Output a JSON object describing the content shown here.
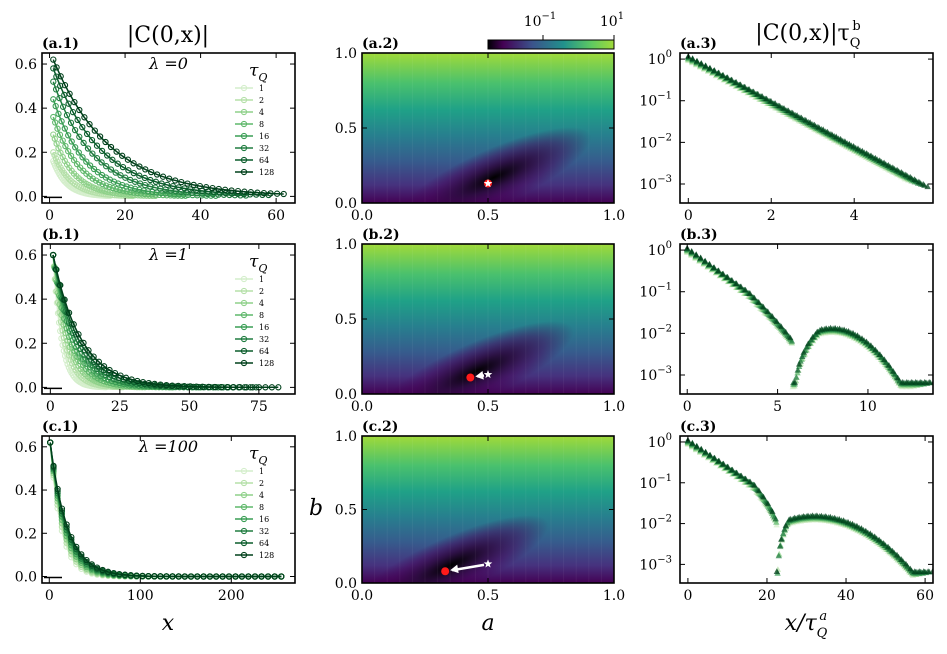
{
  "titles": {
    "left": "|C(0,x)|",
    "right_main": "|C(0,x)|τ",
    "right_sub": "Q",
    "right_sup": "b"
  },
  "axis_labels": {
    "x_left": "x",
    "x_mid": "a",
    "y_mid": "b",
    "x_right_main": "x/τ",
    "x_right_sub": "Q",
    "x_right_sup": "a"
  },
  "colorbar": {
    "tick_labels": [
      "10",
      "10"
    ],
    "tick_exponents": [
      "−1",
      "1"
    ]
  },
  "legend": {
    "title": "τ",
    "title_sub": "Q",
    "entries": [
      "1",
      "2",
      "4",
      "8",
      "16",
      "32",
      "64",
      "128"
    ]
  },
  "colors": {
    "series": [
      "#d4eecb",
      "#b5e0a9",
      "#8fd18a",
      "#5fb86b",
      "#3a9e55",
      "#207d40",
      "#0b5d2c",
      "#00401b"
    ],
    "marker": "#ff1a1a"
  },
  "chart_data": [
    {
      "panel": "(a.1)",
      "type": "line",
      "lambda_label": "λ =0",
      "xlim": [
        -2,
        65
      ],
      "ylim": [
        -0.03,
        0.65
      ],
      "xticks": [
        0,
        20,
        40,
        60
      ],
      "yticks": [
        0.0,
        0.2,
        0.4,
        0.6
      ],
      "xtick_labels": [
        "0",
        "20",
        "40",
        "60"
      ],
      "ytick_labels": [
        "0.0",
        "0.2",
        "0.4",
        "0.6"
      ],
      "series_params": [
        {
          "name": "1",
          "amp": 0.16,
          "xi": 3.5,
          "xmax": 16
        },
        {
          "name": "2",
          "amp": 0.2,
          "xi": 4.5,
          "xmax": 22
        },
        {
          "name": "4",
          "amp": 0.28,
          "xi": 5.5,
          "xmax": 28
        },
        {
          "name": "8",
          "amp": 0.36,
          "xi": 7,
          "xmax": 36
        },
        {
          "name": "16",
          "amp": 0.44,
          "xi": 8.5,
          "xmax": 44
        },
        {
          "name": "32",
          "amp": 0.52,
          "xi": 10.5,
          "xmax": 52
        },
        {
          "name": "64",
          "amp": 0.58,
          "xi": 12.5,
          "xmax": 58
        },
        {
          "name": "128",
          "amp": 0.62,
          "xi": 15,
          "xmax": 62
        }
      ]
    },
    {
      "panel": "(a.2)",
      "type": "heatmap",
      "xlim": [
        0,
        1
      ],
      "ylim": [
        0,
        1
      ],
      "xticks": [
        0,
        0.5,
        1
      ],
      "yticks": [
        0,
        0.5,
        1
      ],
      "xtick_labels": [
        "0.0",
        "0.5",
        "1.0"
      ],
      "ytick_labels": [
        "0.0",
        "0.5",
        "1.0"
      ],
      "minimum": [
        0.5,
        0.13
      ],
      "star": [
        0.5,
        0.13
      ]
    },
    {
      "panel": "(a.3)",
      "type": "scatter",
      "yscale": "log",
      "xlim": [
        -0.2,
        5.9
      ],
      "ylim": [
        0.00035,
        1.4
      ],
      "xticks": [
        0,
        2,
        4
      ],
      "xtick_labels": [
        "0",
        "2",
        "4"
      ],
      "ytick_exponents": [
        0,
        -1,
        -2,
        -3
      ],
      "curve": "exp",
      "rate": 1.25,
      "xmax": 5.5
    },
    {
      "panel": "(b.1)",
      "type": "line",
      "lambda_label": "λ =1",
      "xlim": [
        -3,
        88
      ],
      "ylim": [
        -0.03,
        0.65
      ],
      "xticks": [
        0,
        25,
        50,
        75
      ],
      "yticks": [
        0.0,
        0.2,
        0.4,
        0.6
      ],
      "xtick_labels": [
        "0",
        "25",
        "50",
        "75"
      ],
      "ytick_labels": [
        "0.0",
        "0.2",
        "0.4",
        "0.6"
      ],
      "series_params": [
        {
          "name": "1",
          "amp": 0.6,
          "xi": 3,
          "xmax": 20
        },
        {
          "name": "2",
          "amp": 0.6,
          "xi": 4,
          "xmax": 26
        },
        {
          "name": "4",
          "amp": 0.6,
          "xi": 5,
          "xmax": 34
        },
        {
          "name": "8",
          "amp": 0.6,
          "xi": 6,
          "xmax": 44
        },
        {
          "name": "16",
          "amp": 0.6,
          "xi": 7,
          "xmax": 54
        },
        {
          "name": "32",
          "amp": 0.6,
          "xi": 8,
          "xmax": 64
        },
        {
          "name": "64",
          "amp": 0.6,
          "xi": 9,
          "xmax": 74
        },
        {
          "name": "128",
          "amp": 0.6,
          "xi": 10,
          "xmax": 82
        }
      ]
    },
    {
      "panel": "(b.2)",
      "type": "heatmap",
      "xlim": [
        0,
        1
      ],
      "ylim": [
        0,
        1
      ],
      "xticks": [
        0,
        0.5,
        1
      ],
      "yticks": [
        0,
        0.5,
        1
      ],
      "xtick_labels": [
        "0.0",
        "0.5",
        "1.0"
      ],
      "ytick_labels": [
        "0.0",
        "0.5",
        "1.0"
      ],
      "minimum": [
        0.43,
        0.11
      ],
      "star": [
        0.5,
        0.13
      ]
    },
    {
      "panel": "(b.3)",
      "type": "scatter",
      "yscale": "log",
      "xlim": [
        -0.4,
        13.6
      ],
      "ylim": [
        0.00035,
        1.4
      ],
      "xticks": [
        0,
        5,
        10
      ],
      "xtick_labels": [
        "0",
        "5",
        "10"
      ],
      "ytick_exponents": [
        0,
        -1,
        -2,
        -3
      ],
      "curve": "osc",
      "dip": 5.8,
      "bump": 8,
      "xmax": 13
    },
    {
      "panel": "(c.1)",
      "type": "line",
      "lambda_label": "λ =100",
      "xlim": [
        -8,
        270
      ],
      "ylim": [
        -0.03,
        0.65
      ],
      "xticks": [
        0,
        100,
        200
      ],
      "yticks": [
        0.0,
        0.2,
        0.4,
        0.6
      ],
      "xtick_labels": [
        "0",
        "100",
        "200"
      ],
      "ytick_labels": [
        "0.0",
        "0.2",
        "0.4",
        "0.6"
      ],
      "series_params": [
        {
          "name": "1",
          "amp": 0.62,
          "xi": 12,
          "xmax": 255
        },
        {
          "name": "2",
          "amp": 0.62,
          "xi": 13,
          "xmax": 255
        },
        {
          "name": "4",
          "amp": 0.62,
          "xi": 14,
          "xmax": 255
        },
        {
          "name": "8",
          "amp": 0.62,
          "xi": 15,
          "xmax": 255
        },
        {
          "name": "16",
          "amp": 0.62,
          "xi": 16,
          "xmax": 255
        },
        {
          "name": "32",
          "amp": 0.62,
          "xi": 17,
          "xmax": 255
        },
        {
          "name": "64",
          "amp": 0.62,
          "xi": 18,
          "xmax": 255
        },
        {
          "name": "128",
          "amp": 0.62,
          "xi": 19,
          "xmax": 255
        }
      ]
    },
    {
      "panel": "(c.2)",
      "type": "heatmap",
      "xlim": [
        0,
        1
      ],
      "ylim": [
        0,
        1
      ],
      "xticks": [
        0,
        0.5,
        1
      ],
      "yticks": [
        0,
        0.5,
        1
      ],
      "xtick_labels": [
        "0.0",
        "0.5",
        "1.0"
      ],
      "ytick_labels": [
        "0.0",
        "0.5",
        "1.0"
      ],
      "minimum": [
        0.33,
        0.08
      ],
      "star": [
        0.5,
        0.13
      ]
    },
    {
      "panel": "(c.3)",
      "type": "scatter",
      "yscale": "log",
      "xlim": [
        -2,
        62
      ],
      "ylim": [
        0.00035,
        1.4
      ],
      "xticks": [
        0,
        20,
        40,
        60
      ],
      "xtick_labels": [
        "0",
        "20",
        "40",
        "60"
      ],
      "ytick_exponents": [
        0,
        -1,
        -2,
        -3
      ],
      "curve": "dip",
      "dip": 22.5,
      "bump": 32,
      "xmax": 59
    }
  ]
}
